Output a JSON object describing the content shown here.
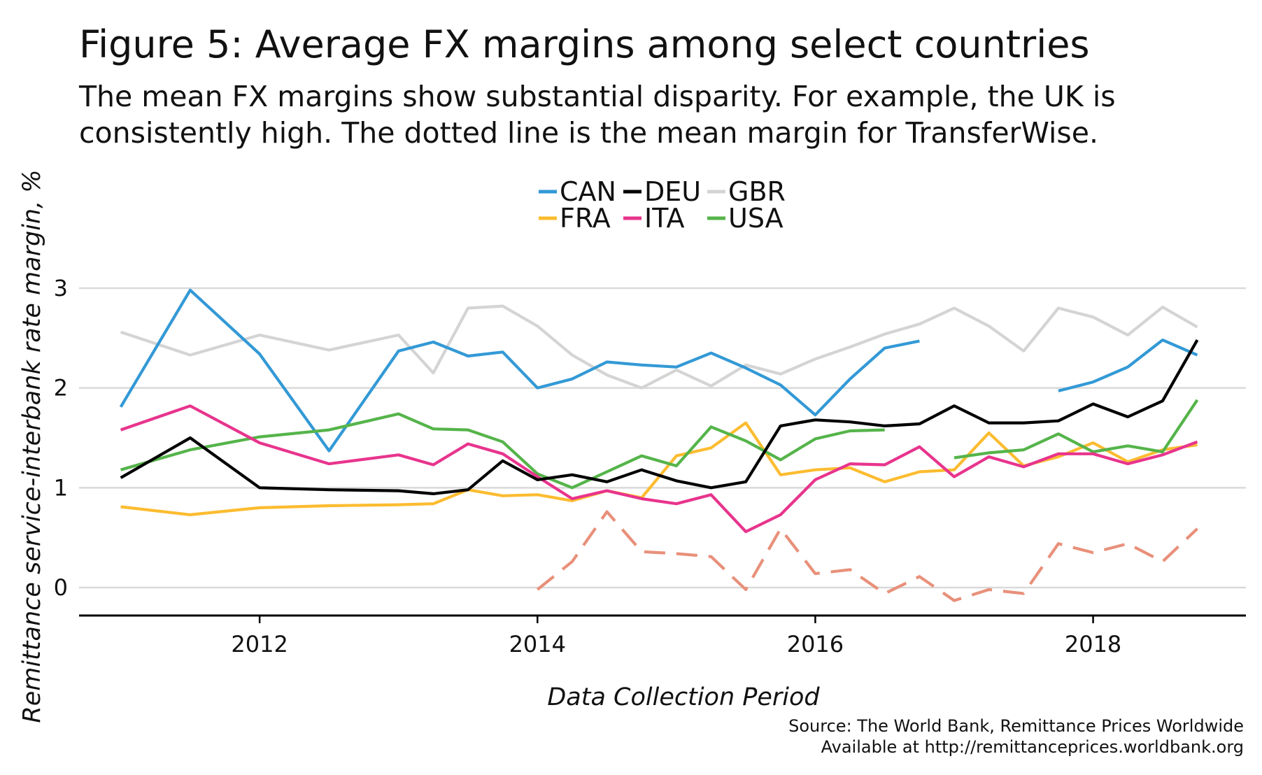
{
  "title": "Figure 5: Average FX margins among select countries",
  "subtitle": {
    "line1": "The mean FX margins show substantial disparity. For example, the UK is",
    "line2": "consistently high. The dotted line is the mean margin for TransferWise."
  },
  "source": {
    "line1": "Source: The World Bank, Remittance Prices Worldwide",
    "line2": "Available at http://remittanceprices.worldbank.org"
  },
  "colors": {
    "CAN": "#3399d6",
    "DEU": "#000000",
    "GBR": "#d4d4d4",
    "FRA": "#fcbc30",
    "ITA": "#e8348d",
    "USA": "#55b44a",
    "TransferWise": "#e8907a",
    "grid": "#d9d9d9"
  },
  "chart_data": {
    "type": "line",
    "title": "Figure 5: Average FX margins among select countries",
    "xlabel": "Data Collection Period",
    "ylabel": "Remittance service-interbank rate margin, %",
    "xlim": [
      2010.7,
      2019.1
    ],
    "ylim": [
      -0.28,
      3.35
    ],
    "x_ticks": [
      2012,
      2014,
      2016,
      2018
    ],
    "y_ticks": [
      0,
      1,
      2,
      3
    ],
    "grid": "horizontal",
    "legend_position": "top-center",
    "legend": [
      [
        "CAN",
        "DEU",
        "GBR"
      ],
      [
        "FRA",
        "ITA",
        "USA"
      ]
    ],
    "series": [
      {
        "name": "CAN",
        "points": [
          [
            2011.0,
            1.81
          ],
          [
            2011.5,
            2.98
          ],
          [
            2012.0,
            2.34
          ],
          [
            2012.5,
            1.37
          ],
          [
            2013.0,
            2.37
          ],
          [
            2013.25,
            2.46
          ],
          [
            2013.5,
            2.32
          ],
          [
            2013.75,
            2.36
          ],
          [
            2014.0,
            2.0
          ],
          [
            2014.25,
            2.09
          ],
          [
            2014.5,
            2.26
          ],
          [
            2014.75,
            2.23
          ],
          [
            2015.0,
            2.21
          ],
          [
            2015.25,
            2.35
          ],
          [
            2015.5,
            2.2
          ],
          [
            2015.75,
            2.03
          ],
          [
            2016.0,
            1.73
          ],
          [
            2016.25,
            2.09
          ],
          [
            2016.5,
            2.4
          ],
          [
            2016.75,
            2.47
          ],
          null,
          [
            2017.75,
            1.97
          ],
          [
            2018.0,
            2.06
          ],
          [
            2018.25,
            2.21
          ],
          [
            2018.5,
            2.48
          ],
          [
            2018.75,
            2.33
          ]
        ]
      },
      {
        "name": "DEU",
        "points": [
          [
            2011.0,
            1.1
          ],
          [
            2011.5,
            1.5
          ],
          [
            2012.0,
            1.0
          ],
          [
            2012.5,
            0.98
          ],
          [
            2013.0,
            0.97
          ],
          [
            2013.25,
            0.94
          ],
          [
            2013.5,
            0.98
          ],
          [
            2013.75,
            1.27
          ],
          [
            2014.0,
            1.08
          ],
          [
            2014.25,
            1.13
          ],
          [
            2014.5,
            1.06
          ],
          [
            2014.75,
            1.18
          ],
          [
            2015.0,
            1.07
          ],
          [
            2015.25,
            1.0
          ],
          [
            2015.5,
            1.06
          ],
          [
            2015.75,
            1.62
          ],
          [
            2016.0,
            1.68
          ],
          [
            2016.25,
            1.66
          ],
          [
            2016.5,
            1.62
          ],
          [
            2016.75,
            1.64
          ],
          [
            2017.0,
            1.82
          ],
          [
            2017.25,
            1.65
          ],
          [
            2017.5,
            1.65
          ],
          [
            2017.75,
            1.67
          ],
          [
            2018.0,
            1.84
          ],
          [
            2018.25,
            1.71
          ],
          [
            2018.5,
            1.87
          ],
          [
            2018.75,
            2.48
          ]
        ]
      },
      {
        "name": "GBR",
        "points": [
          [
            2011.0,
            2.56
          ],
          [
            2011.5,
            2.33
          ],
          [
            2012.0,
            2.53
          ],
          [
            2012.5,
            2.38
          ],
          [
            2013.0,
            2.53
          ],
          [
            2013.25,
            2.15
          ],
          [
            2013.5,
            2.8
          ],
          [
            2013.75,
            2.82
          ],
          [
            2014.0,
            2.62
          ],
          [
            2014.25,
            2.33
          ],
          [
            2014.5,
            2.13
          ],
          [
            2014.75,
            2.0
          ],
          [
            2015.0,
            2.18
          ],
          [
            2015.25,
            2.02
          ],
          [
            2015.5,
            2.23
          ],
          [
            2015.75,
            2.14
          ],
          [
            2016.0,
            2.29
          ],
          [
            2016.25,
            2.41
          ],
          [
            2016.5,
            2.54
          ],
          [
            2016.75,
            2.64
          ],
          [
            2017.0,
            2.8
          ],
          [
            2017.25,
            2.62
          ],
          [
            2017.5,
            2.37
          ],
          [
            2017.75,
            2.8
          ],
          [
            2018.0,
            2.71
          ],
          [
            2018.25,
            2.53
          ],
          [
            2018.5,
            2.81
          ],
          [
            2018.75,
            2.61
          ]
        ]
      },
      {
        "name": "FRA",
        "points": [
          [
            2011.0,
            0.81
          ],
          [
            2011.5,
            0.73
          ],
          [
            2012.0,
            0.8
          ],
          [
            2012.5,
            0.82
          ],
          [
            2013.0,
            0.83
          ],
          [
            2013.25,
            0.84
          ],
          [
            2013.5,
            0.98
          ],
          [
            2013.75,
            0.92
          ],
          [
            2014.0,
            0.93
          ],
          [
            2014.25,
            0.87
          ],
          [
            2014.5,
            0.97
          ],
          [
            2014.75,
            0.9
          ],
          [
            2015.0,
            1.32
          ],
          [
            2015.25,
            1.4
          ],
          [
            2015.5,
            1.65
          ],
          [
            2015.75,
            1.13
          ],
          [
            2016.0,
            1.18
          ],
          [
            2016.25,
            1.2
          ],
          [
            2016.5,
            1.06
          ],
          [
            2016.75,
            1.16
          ],
          [
            2017.0,
            1.18
          ],
          [
            2017.25,
            1.55
          ],
          [
            2017.5,
            1.22
          ],
          [
            2017.75,
            1.31
          ],
          [
            2018.0,
            1.45
          ],
          [
            2018.25,
            1.26
          ],
          [
            2018.5,
            1.38
          ],
          [
            2018.75,
            1.43
          ]
        ]
      },
      {
        "name": "ITA",
        "points": [
          [
            2011.0,
            1.58
          ],
          [
            2011.5,
            1.82
          ],
          [
            2012.0,
            1.45
          ],
          [
            2012.5,
            1.24
          ],
          [
            2013.0,
            1.33
          ],
          [
            2013.25,
            1.23
          ],
          [
            2013.5,
            1.44
          ],
          [
            2013.75,
            1.34
          ],
          [
            2014.0,
            1.11
          ],
          [
            2014.25,
            0.89
          ],
          [
            2014.5,
            0.97
          ],
          [
            2014.75,
            0.89
          ],
          [
            2015.0,
            0.84
          ],
          [
            2015.25,
            0.93
          ],
          [
            2015.5,
            0.56
          ],
          [
            2015.75,
            0.73
          ],
          [
            2016.0,
            1.08
          ],
          [
            2016.25,
            1.24
          ],
          [
            2016.5,
            1.23
          ],
          [
            2016.75,
            1.41
          ],
          [
            2017.0,
            1.11
          ],
          [
            2017.25,
            1.31
          ],
          [
            2017.5,
            1.21
          ],
          [
            2017.75,
            1.34
          ],
          [
            2018.0,
            1.34
          ],
          [
            2018.25,
            1.24
          ],
          [
            2018.5,
            1.33
          ],
          [
            2018.75,
            1.46
          ]
        ]
      },
      {
        "name": "USA",
        "points": [
          [
            2011.0,
            1.18
          ],
          [
            2011.5,
            1.38
          ],
          [
            2012.0,
            1.51
          ],
          [
            2012.5,
            1.58
          ],
          [
            2013.0,
            1.74
          ],
          [
            2013.25,
            1.59
          ],
          [
            2013.5,
            1.58
          ],
          [
            2013.75,
            1.46
          ],
          [
            2014.0,
            1.14
          ],
          [
            2014.25,
            1.0
          ],
          [
            2014.5,
            1.16
          ],
          [
            2014.75,
            1.32
          ],
          [
            2015.0,
            1.22
          ],
          [
            2015.25,
            1.61
          ],
          [
            2015.5,
            1.47
          ],
          [
            2015.75,
            1.28
          ],
          [
            2016.0,
            1.49
          ],
          [
            2016.25,
            1.57
          ],
          [
            2016.5,
            1.58
          ],
          null,
          [
            2017.0,
            1.3
          ],
          [
            2017.25,
            1.35
          ],
          [
            2017.5,
            1.38
          ],
          [
            2017.75,
            1.54
          ],
          [
            2018.0,
            1.36
          ],
          [
            2018.25,
            1.42
          ],
          [
            2018.5,
            1.36
          ],
          [
            2018.75,
            1.88
          ]
        ]
      },
      {
        "name": "TransferWise",
        "style": "dashed",
        "points": [
          [
            2014.0,
            -0.02
          ],
          [
            2014.25,
            0.26
          ],
          [
            2014.5,
            0.76
          ],
          [
            2014.75,
            0.36
          ],
          [
            2015.0,
            0.34
          ],
          [
            2015.25,
            0.31
          ],
          [
            2015.5,
            -0.02
          ],
          [
            2015.75,
            0.59
          ],
          [
            2016.0,
            0.14
          ],
          [
            2016.25,
            0.18
          ],
          [
            2016.5,
            -0.06
          ],
          [
            2016.75,
            0.11
          ],
          [
            2017.0,
            -0.13
          ],
          [
            2017.25,
            -0.02
          ],
          [
            2017.5,
            -0.06
          ],
          [
            2017.75,
            0.44
          ],
          [
            2018.0,
            0.35
          ],
          [
            2018.25,
            0.44
          ],
          [
            2018.5,
            0.26
          ],
          [
            2018.75,
            0.59
          ]
        ]
      }
    ]
  }
}
